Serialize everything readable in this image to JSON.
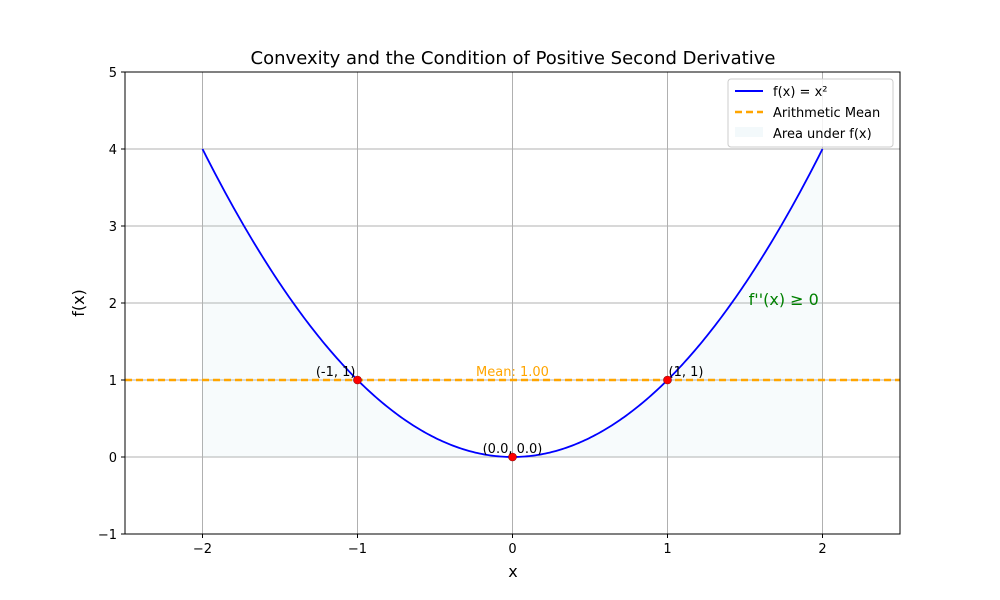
{
  "chart_data": {
    "type": "line",
    "title": "Convexity and the Condition of Positive Second Derivative",
    "xlabel": "x",
    "ylabel": "f(x)",
    "xlim": [
      -2.5,
      2.5
    ],
    "ylim": [
      -1,
      5
    ],
    "xticks": [
      -2,
      -1,
      0,
      1,
      2
    ],
    "xtick_labels": [
      "−2",
      "−1",
      "0",
      "1",
      "2"
    ],
    "yticks": [
      -1,
      0,
      1,
      2,
      3,
      4,
      5
    ],
    "ytick_labels": [
      "−1",
      "0",
      "1",
      "2",
      "3",
      "4",
      "5"
    ],
    "grid": true,
    "legend_position": "top-right",
    "series": [
      {
        "name": "f(x) = x²",
        "kind": "curve",
        "function": "x^2",
        "x_range": [
          -2,
          2
        ],
        "color": "#0000ff",
        "linestyle": "solid"
      },
      {
        "name": "Arithmetic Mean",
        "kind": "hline",
        "y": 1.0,
        "color": "#ffa500",
        "linestyle": "dashed"
      },
      {
        "name": "Area under f(x)",
        "kind": "fill",
        "function": "x^2",
        "x_range": [
          -2,
          2
        ],
        "color": "#add8e6",
        "alpha": 0.1
      }
    ],
    "points": [
      {
        "x": -1,
        "y": 1,
        "label": "(-1, 1)"
      },
      {
        "x": 0,
        "y": 0,
        "label": "(0.0, 0.0)"
      },
      {
        "x": 1,
        "y": 1,
        "label": "(1, 1)"
      }
    ],
    "point_color": "#ff0000",
    "annotations": [
      {
        "text": "Mean: 1.00",
        "x": 0,
        "y": 1.0,
        "color": "#ffa500"
      },
      {
        "text": "f''(x) ≥ 0",
        "x": 1.75,
        "y": 2.0,
        "color": "#008000"
      }
    ]
  }
}
